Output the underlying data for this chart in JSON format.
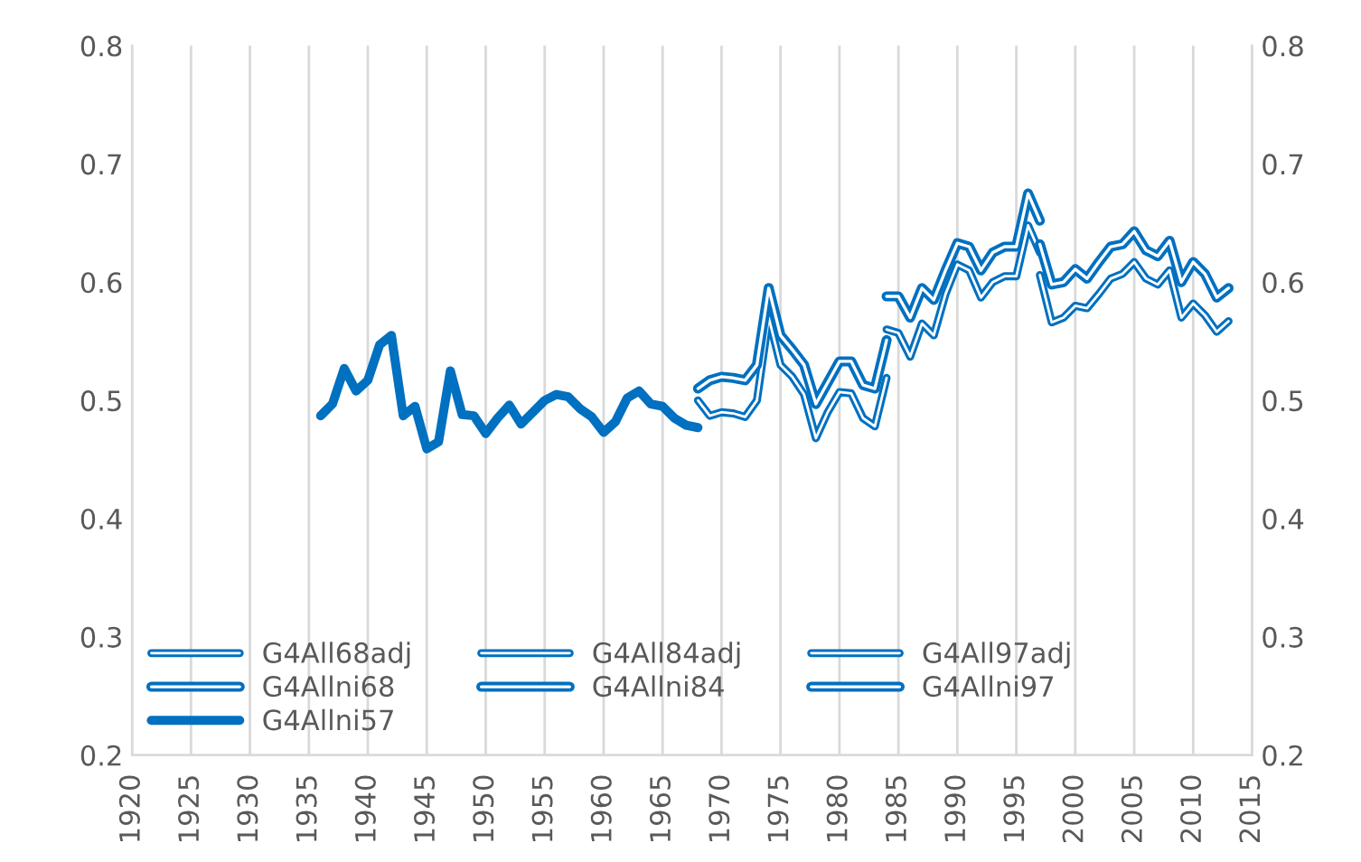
{
  "chart_data": {
    "type": "line",
    "xlim": [
      1920,
      2015
    ],
    "xticks": [
      1920,
      1925,
      1930,
      1935,
      1940,
      1945,
      1950,
      1955,
      1960,
      1965,
      1970,
      1975,
      1980,
      1985,
      1990,
      1995,
      2000,
      2005,
      2010,
      2015
    ],
    "ylim": [
      0.2,
      0.8
    ],
    "yticks": [
      0.2,
      0.3,
      0.4,
      0.5,
      0.6,
      0.7,
      0.8
    ],
    "y2lim": [
      0.2,
      0.8
    ],
    "y2ticks": [
      0.2,
      0.3,
      0.4,
      0.5,
      0.6,
      0.7,
      0.8
    ],
    "grid": "x",
    "legend": "bottom left",
    "line_style": "solid",
    "marker": "none",
    "series": [
      {
        "name": "G4All68adj",
        "color": "#0070c0",
        "x": [
          1968,
          1969,
          1970,
          1971,
          1972,
          1973,
          1974,
          1975,
          1976,
          1977,
          1978,
          1979,
          1980,
          1981,
          1982,
          1983,
          1984
        ],
        "values": [
          0.5,
          0.487,
          0.49,
          0.489,
          0.486,
          0.5,
          0.57,
          0.53,
          0.52,
          0.505,
          0.468,
          0.49,
          0.507,
          0.506,
          0.485,
          0.478,
          0.519
        ]
      },
      {
        "name": "G4All84adj",
        "color": "#0070c0",
        "x": [
          1984,
          1985,
          1986,
          1987,
          1988,
          1989,
          1990,
          1991,
          1992,
          1993,
          1994,
          1995,
          1996,
          1997
        ],
        "values": [
          0.56,
          0.557,
          0.537,
          0.565,
          0.555,
          0.59,
          0.615,
          0.61,
          0.587,
          0.6,
          0.605,
          0.605,
          0.648,
          0.625
        ]
      },
      {
        "name": "G4All97adj",
        "color": "#0070c0",
        "x": [
          1997,
          1998,
          1999,
          2000,
          2001,
          2002,
          2003,
          2004,
          2005,
          2006,
          2007,
          2008,
          2009,
          2010,
          2011,
          2012,
          2013
        ],
        "values": [
          0.606,
          0.566,
          0.57,
          0.58,
          0.578,
          0.59,
          0.603,
          0.607,
          0.617,
          0.603,
          0.598,
          0.61,
          0.57,
          0.582,
          0.572,
          0.558,
          0.567
        ]
      },
      {
        "name": "G4Allni68",
        "color": "#0070c0",
        "x": [
          1968,
          1969,
          1970,
          1971,
          1972,
          1973,
          1974,
          1975,
          1976,
          1977,
          1978,
          1979,
          1980,
          1981,
          1982,
          1983,
          1984
        ],
        "values": [
          0.51,
          0.517,
          0.52,
          0.519,
          0.517,
          0.53,
          0.595,
          0.555,
          0.543,
          0.53,
          0.497,
          0.515,
          0.533,
          0.533,
          0.513,
          0.51,
          0.551
        ]
      },
      {
        "name": "G4Allni84",
        "color": "#0070c0",
        "x": [
          1984,
          1985,
          1986,
          1987,
          1988,
          1989,
          1990,
          1991,
          1992,
          1993,
          1994,
          1995,
          1996,
          1997
        ],
        "values": [
          0.588,
          0.588,
          0.57,
          0.595,
          0.585,
          0.61,
          0.633,
          0.63,
          0.61,
          0.625,
          0.63,
          0.63,
          0.675,
          0.652
        ]
      },
      {
        "name": "G4Allni97",
        "color": "#0070c0",
        "x": [
          1997,
          1998,
          1999,
          2000,
          2001,
          2002,
          2003,
          2004,
          2005,
          2006,
          2007,
          2008,
          2009,
          2010,
          2011,
          2012,
          2013
        ],
        "values": [
          0.632,
          0.598,
          0.6,
          0.611,
          0.603,
          0.617,
          0.63,
          0.632,
          0.643,
          0.627,
          0.622,
          0.635,
          0.6,
          0.617,
          0.607,
          0.587,
          0.595
        ]
      },
      {
        "name": "G4Allni57",
        "color": "#0070c0",
        "x": [
          1936,
          1937,
          1938,
          1939,
          1940,
          1941,
          1942,
          1943,
          1944,
          1945,
          1946,
          1947,
          1948,
          1949,
          1950,
          1951,
          1952,
          1953,
          1954,
          1955,
          1956,
          1957,
          1958,
          1959,
          1960,
          1961,
          1962,
          1963,
          1964,
          1965,
          1966,
          1967,
          1968
        ],
        "values": [
          0.487,
          0.497,
          0.527,
          0.508,
          0.517,
          0.547,
          0.555,
          0.487,
          0.495,
          0.459,
          0.465,
          0.525,
          0.488,
          0.487,
          0.472,
          0.485,
          0.496,
          0.48,
          0.49,
          0.5,
          0.505,
          0.503,
          0.493,
          0.486,
          0.473,
          0.482,
          0.502,
          0.508,
          0.497,
          0.495,
          0.485,
          0.479,
          0.477
        ]
      }
    ]
  }
}
